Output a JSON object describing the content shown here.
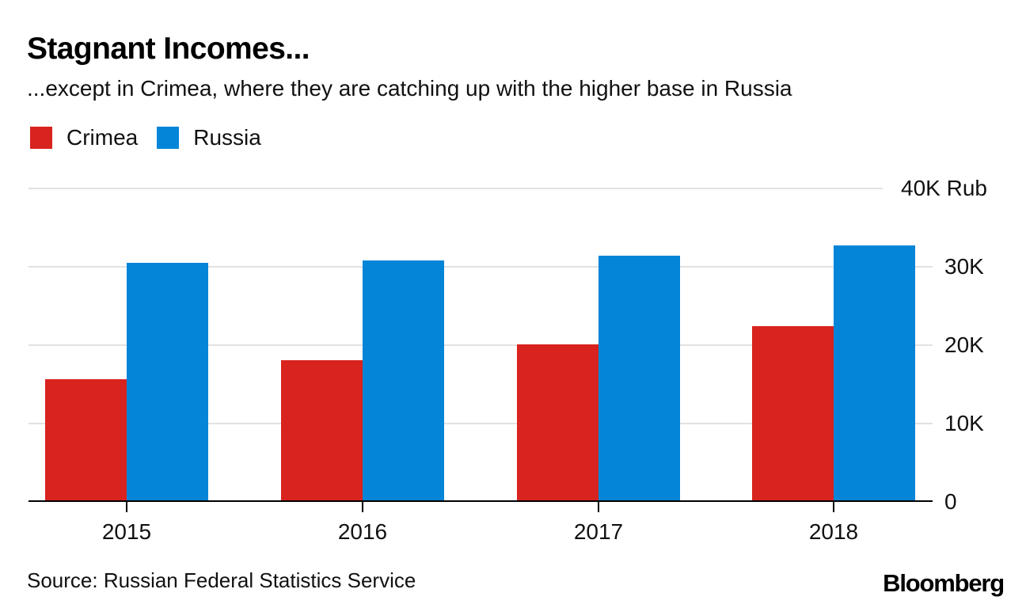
{
  "header": {
    "title": "Stagnant Incomes...",
    "subtitle": "...except in Crimea, where they are catching up with the higher base in Russia"
  },
  "chart_data": {
    "type": "bar",
    "categories": [
      "2015",
      "2016",
      "2017",
      "2018"
    ],
    "series": [
      {
        "name": "Crimea",
        "color": "#d9231f",
        "values": [
          15.7,
          18.1,
          20.1,
          22.4
        ]
      },
      {
        "name": "Russia",
        "color": "#0585d8",
        "values": [
          30.5,
          30.8,
          31.4,
          32.7
        ]
      }
    ],
    "value_unit": "thousand rubles",
    "ylim": [
      0,
      40
    ],
    "yticks": [
      {
        "value": 0,
        "label": "0"
      },
      {
        "value": 10,
        "label": "10K"
      },
      {
        "value": 20,
        "label": "20K"
      },
      {
        "value": 30,
        "label": "30K"
      },
      {
        "value": 40,
        "label": "40K Rub"
      }
    ],
    "grid": "horizontal",
    "legend_position": "top-left",
    "axis_side": "right"
  },
  "footer": {
    "source": "Source: Russian Federal Statistics Service",
    "brand": "Bloomberg"
  },
  "colors": {
    "crimea": "#d9231f",
    "russia": "#0585d8",
    "gridline": "#e2e2e2",
    "axis": "#000000",
    "text": "#000000",
    "background": "#ffffff"
  }
}
